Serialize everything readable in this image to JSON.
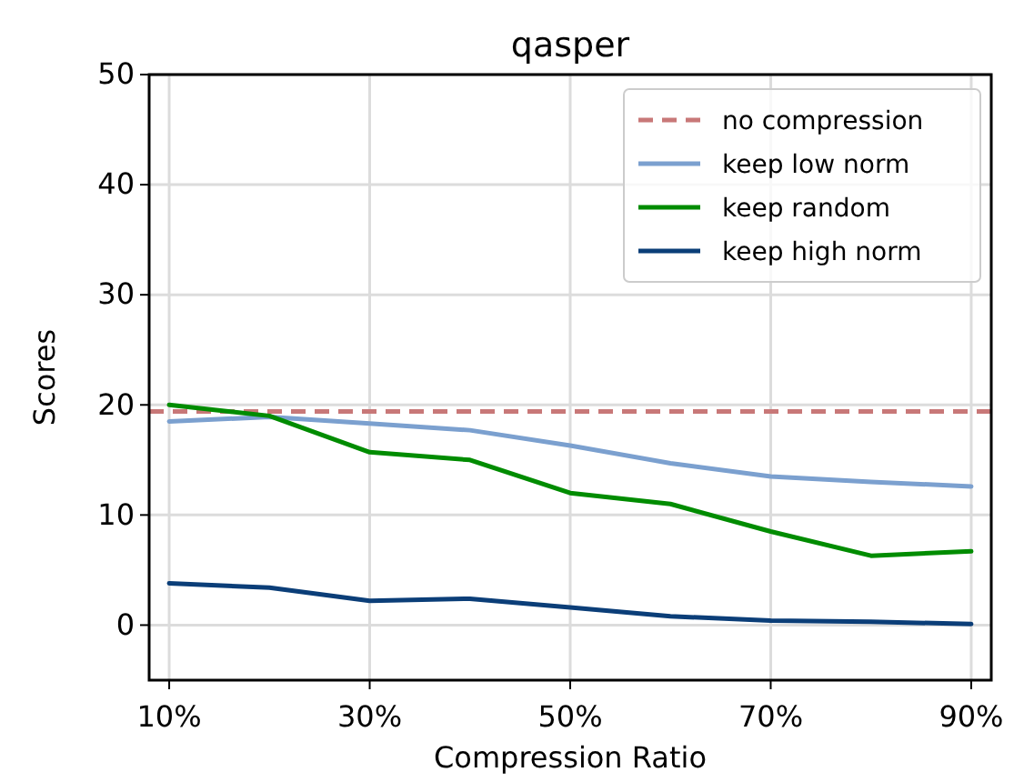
{
  "chart_data": {
    "type": "line",
    "title": "qasper",
    "xlabel": "Compression Ratio",
    "ylabel": "Scores",
    "x": [
      10,
      20,
      30,
      40,
      50,
      60,
      70,
      80,
      90
    ],
    "xlim": [
      8,
      92
    ],
    "xticks": [
      {
        "value": 10,
        "label": "10%"
      },
      {
        "value": 30,
        "label": "30%"
      },
      {
        "value": 50,
        "label": "50%"
      },
      {
        "value": 70,
        "label": "70%"
      },
      {
        "value": 90,
        "label": "90%"
      }
    ],
    "ylim": [
      -5,
      50
    ],
    "yticks": [
      0,
      10,
      20,
      30,
      40,
      50
    ],
    "grid": true,
    "legend": "top right",
    "line_style": "solid",
    "ref_lines": [
      {
        "axis": "y",
        "value": 19.4,
        "label": "no compression",
        "color": "#c87878",
        "line_style": "dashed"
      }
    ],
    "series": [
      {
        "name": "keep low norm",
        "color": "#7ba0cf",
        "values": [
          18.5,
          18.9,
          18.3,
          17.7,
          16.3,
          14.7,
          13.5,
          13.0,
          12.6
        ]
      },
      {
        "name": "keep random",
        "color": "#008c00",
        "values": [
          20.0,
          19.0,
          15.7,
          15.0,
          12.0,
          11.0,
          8.5,
          6.3,
          6.7
        ]
      },
      {
        "name": "keep high norm",
        "color": "#0b3e78",
        "values": [
          3.8,
          3.4,
          2.2,
          2.4,
          1.6,
          0.8,
          0.4,
          0.3,
          0.1
        ]
      }
    ]
  }
}
